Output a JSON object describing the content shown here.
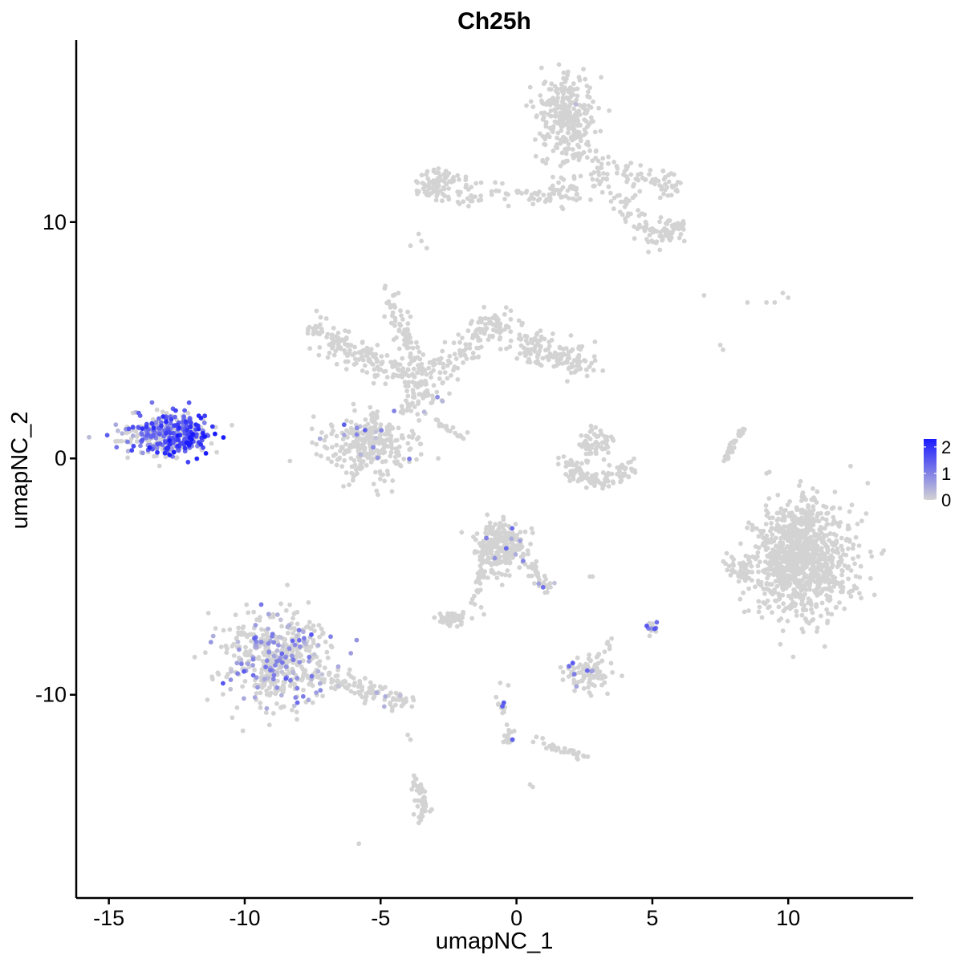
{
  "chart_data": {
    "type": "scatter",
    "title": "Ch25h",
    "xlabel": "umapNC_1",
    "ylabel": "umapNC_2",
    "xlim": [
      -16.2,
      14.6
    ],
    "ylim": [
      -18.6,
      17.7
    ],
    "x_ticks": [
      -15,
      -10,
      -5,
      0,
      5,
      10
    ],
    "x_tick_labels": [
      "-15",
      "-10",
      "-5",
      "0",
      "5",
      "10"
    ],
    "y_ticks": [
      -10,
      0,
      10
    ],
    "y_tick_labels": [
      "-10",
      "0",
      "10"
    ],
    "grid": false,
    "legend_position": "right",
    "color_scale": {
      "low": "#d3d3d3",
      "high": "#1a1aff",
      "min": 0,
      "max": 2.3,
      "breaks": [
        2,
        1,
        0
      ],
      "break_labels": [
        "2",
        "1",
        "0"
      ]
    },
    "clusters": [
      {
        "label": "top-right arm",
        "shape": "path",
        "path": [
          [
            -3.6,
            11.8
          ],
          [
            -2.5,
            11.5
          ],
          [
            -1.5,
            11.3
          ],
          [
            0.5,
            11.1
          ],
          [
            2,
            11.2
          ],
          [
            3,
            12
          ],
          [
            4,
            12.2
          ],
          [
            5,
            11.8
          ],
          [
            6,
            11.5
          ]
        ],
        "spread": 0.3,
        "n": 200,
        "expr_mean": 0,
        "expr_frac": 0
      },
      {
        "label": "top-right upper blob",
        "shape": "blob",
        "center": [
          1.8,
          14.3
        ],
        "sd": [
          0.5,
          1.0
        ],
        "n": 300,
        "expr_mean": 0.4,
        "expr_frac": 0.003
      },
      {
        "label": "top-right tail",
        "shape": "path",
        "path": [
          [
            3.5,
            11
          ],
          [
            4.5,
            10
          ],
          [
            5,
            9.2
          ],
          [
            5.6,
            9.6
          ],
          [
            6,
            9.8
          ]
        ],
        "spread": 0.25,
        "n": 100,
        "expr_mean": 0,
        "expr_frac": 0
      },
      {
        "label": "top-left small patch",
        "shape": "blob",
        "center": [
          -3.0,
          11.6
        ],
        "sd": [
          0.35,
          0.35
        ],
        "n": 60,
        "expr_mean": 0,
        "expr_frac": 0
      },
      {
        "label": "center-left branch",
        "shape": "path",
        "path": [
          [
            -7.5,
            5.5
          ],
          [
            -6.5,
            4.8
          ],
          [
            -5.5,
            4.2
          ],
          [
            -4.2,
            3.8
          ],
          [
            -3,
            3.5
          ]
        ],
        "spread": 0.35,
        "n": 200,
        "expr_mean": 0,
        "expr_frac": 0
      },
      {
        "label": "center-right branch",
        "shape": "path",
        "path": [
          [
            -3,
            3.5
          ],
          [
            -2,
            4.5
          ],
          [
            -1,
            5.8
          ],
          [
            0,
            5.2
          ],
          [
            1,
            4.5
          ],
          [
            2,
            4.3
          ],
          [
            2.5,
            3.9
          ]
        ],
        "spread": 0.35,
        "n": 250,
        "expr_mean": 0,
        "expr_frac": 0
      },
      {
        "label": "center stalk",
        "shape": "path",
        "path": [
          [
            -4.7,
            7.5
          ],
          [
            -4.4,
            6
          ],
          [
            -4,
            5
          ],
          [
            -3.8,
            4.2
          ]
        ],
        "spread": 0.18,
        "n": 60,
        "expr_mean": 0,
        "expr_frac": 0
      },
      {
        "label": "center lower blob",
        "shape": "blob",
        "center": [
          -5.5,
          0.5
        ],
        "sd": [
          0.9,
          0.7
        ],
        "n": 300,
        "expr_mean": 0.7,
        "expr_frac": 0.05
      },
      {
        "label": "center connector",
        "shape": "path",
        "path": [
          [
            -4.2,
            1.8
          ],
          [
            -3.6,
            2.6
          ],
          [
            -3.1,
            3.3
          ]
        ],
        "spread": 0.3,
        "n": 60,
        "expr_mean": 0.6,
        "expr_frac": 0.05
      },
      {
        "label": "center thin thread",
        "shape": "path",
        "path": [
          [
            -3,
            1.7
          ],
          [
            -2.5,
            1.2
          ],
          [
            -2,
            0.9
          ]
        ],
        "spread": 0.05,
        "n": 20,
        "expr_mean": 0,
        "expr_frac": 0
      },
      {
        "label": "left expressing cluster",
        "shape": "blob",
        "center": [
          -12.8,
          1.0
        ],
        "sd": [
          0.85,
          0.45
        ],
        "n": 400,
        "expr_mean": 1.0,
        "expr_frac": 0.6
      },
      {
        "label": "right crescent",
        "shape": "path",
        "path": [
          [
            1.9,
            -0.2
          ],
          [
            2.2,
            -0.7
          ],
          [
            3,
            -0.9
          ],
          [
            3.8,
            -0.7
          ],
          [
            4.2,
            -0.3
          ]
        ],
        "spread": 0.18,
        "n": 120,
        "expr_mean": 0,
        "expr_frac": 0
      },
      {
        "label": "right crescent top",
        "shape": "blob",
        "center": [
          2.8,
          0.7
        ],
        "sd": [
          0.3,
          0.35
        ],
        "n": 60,
        "expr_mean": 0,
        "expr_frac": 0
      },
      {
        "label": "thin curve",
        "shape": "path",
        "path": [
          [
            7.7,
            -0.1
          ],
          [
            7.9,
            0.5
          ],
          [
            8.2,
            1.0
          ],
          [
            8.4,
            1.2
          ]
        ],
        "spread": 0.06,
        "n": 40,
        "expr_mean": 0,
        "expr_frac": 0
      },
      {
        "label": "far-right large cluster",
        "shape": "blob",
        "center": [
          10.5,
          -4.2
        ],
        "sd": [
          0.9,
          1.2
        ],
        "n": 1000,
        "expr_mean": 0,
        "expr_frac": 0
      },
      {
        "label": "far-right lip",
        "shape": "blob",
        "center": [
          8.2,
          -4.6
        ],
        "sd": [
          0.25,
          0.3
        ],
        "n": 40,
        "expr_mean": 0,
        "expr_frac": 0
      },
      {
        "label": "lower-left expressing cluster",
        "shape": "blob",
        "center": [
          -8.8,
          -8.5
        ],
        "sd": [
          1.0,
          1.0
        ],
        "n": 500,
        "expr_mean": 0.6,
        "expr_frac": 0.25
      },
      {
        "label": "lower-left tail",
        "shape": "path",
        "path": [
          [
            -7.5,
            -9.2
          ],
          [
            -6.5,
            -9.5
          ],
          [
            -5.5,
            -9.8
          ],
          [
            -4.8,
            -10.1
          ],
          [
            -4.0,
            -10.3
          ]
        ],
        "spread": 0.2,
        "n": 100,
        "expr_mean": 0.5,
        "expr_frac": 0.05
      },
      {
        "label": "mid cluster",
        "shape": "blob",
        "center": [
          -0.6,
          -3.8
        ],
        "sd": [
          0.45,
          0.55
        ],
        "n": 250,
        "expr_mean": 0.6,
        "expr_frac": 0.03
      },
      {
        "label": "mid cluster arm",
        "shape": "path",
        "path": [
          [
            0.1,
            -4.0
          ],
          [
            0.6,
            -4.5
          ],
          [
            0.9,
            -5.2
          ],
          [
            1.2,
            -5.5
          ]
        ],
        "spread": 0.12,
        "n": 40,
        "expr_mean": 1.0,
        "expr_frac": 0.1
      },
      {
        "label": "mid stalk",
        "shape": "path",
        "path": [
          [
            -1.7,
            -6.1
          ],
          [
            -1.4,
            -5.5
          ],
          [
            -1.3,
            -4.8
          ]
        ],
        "spread": 0.08,
        "n": 25,
        "expr_mean": 0,
        "expr_frac": 0
      },
      {
        "label": "small patch left",
        "shape": "blob",
        "center": [
          -2.4,
          -6.8
        ],
        "sd": [
          0.3,
          0.16
        ],
        "n": 60,
        "expr_mean": 0,
        "expr_frac": 0
      },
      {
        "label": "small patch right",
        "shape": "blob",
        "center": [
          2.6,
          -9.1
        ],
        "sd": [
          0.4,
          0.35
        ],
        "n": 90,
        "expr_mean": 1.0,
        "expr_frac": 0.03
      },
      {
        "label": "small patch tail",
        "shape": "path",
        "path": [
          [
            2.8,
            -8.6
          ],
          [
            3.3,
            -8.0
          ],
          [
            3.6,
            -7.6
          ]
        ],
        "spread": 0.08,
        "n": 10,
        "expr_mean": 0,
        "expr_frac": 0
      },
      {
        "label": "tiny patch",
        "shape": "blob",
        "center": [
          5.0,
          -7.2
        ],
        "sd": [
          0.12,
          0.15
        ],
        "n": 15,
        "expr_mean": 1.3,
        "expr_frac": 0.3
      },
      {
        "label": "thread down",
        "shape": "path",
        "path": [
          [
            -0.7,
            -10.1
          ],
          [
            -0.4,
            -11.0
          ],
          [
            -0.2,
            -11.8
          ],
          [
            -0.4,
            -12.1
          ]
        ],
        "spread": 0.08,
        "n": 30,
        "expr_mean": 1.2,
        "expr_frac": 0.15
      },
      {
        "label": "thread right",
        "shape": "path",
        "path": [
          [
            0.6,
            -11.8
          ],
          [
            1.4,
            -12.2
          ],
          [
            2,
            -12.5
          ],
          [
            2.5,
            -12.6
          ]
        ],
        "spread": 0.1,
        "n": 30,
        "expr_mean": 0,
        "expr_frac": 0
      },
      {
        "label": "bottom stalk",
        "shape": "path",
        "path": [
          [
            -3.7,
            -13.6
          ],
          [
            -3.5,
            -14.3
          ],
          [
            -3.3,
            -14.8
          ],
          [
            -3.6,
            -15.4
          ]
        ],
        "spread": 0.12,
        "n": 50,
        "expr_mean": 0,
        "expr_frac": 0
      }
    ],
    "scattered": [
      [
        -5.8,
        -16.3
      ],
      [
        -4.0,
        -11.7
      ],
      [
        -3.9,
        -11.9
      ],
      [
        -0.6,
        -9.5
      ],
      [
        -0.3,
        -9.6
      ],
      [
        0.5,
        -13.8
      ],
      [
        0.6,
        -13.9
      ],
      [
        -1.3,
        -6.3
      ],
      [
        -1.2,
        -6.6
      ],
      [
        2.7,
        -5.0
      ],
      [
        2.8,
        -5.0
      ],
      [
        6.9,
        6.9
      ],
      [
        7.5,
        4.8
      ],
      [
        7.6,
        4.6
      ],
      [
        8.5,
        6.6
      ],
      [
        9.2,
        6.6
      ],
      [
        9.5,
        6.6
      ],
      [
        9.8,
        7.0
      ],
      [
        10.0,
        6.8
      ],
      [
        -3.9,
        9.0
      ],
      [
        -3.5,
        9.2
      ],
      [
        -3.6,
        9.5
      ],
      [
        -3.3,
        8.9
      ],
      [
        -4.0,
        6.2
      ],
      [
        -3.9,
        6.0
      ],
      [
        -1.8,
        1.1
      ]
    ]
  }
}
